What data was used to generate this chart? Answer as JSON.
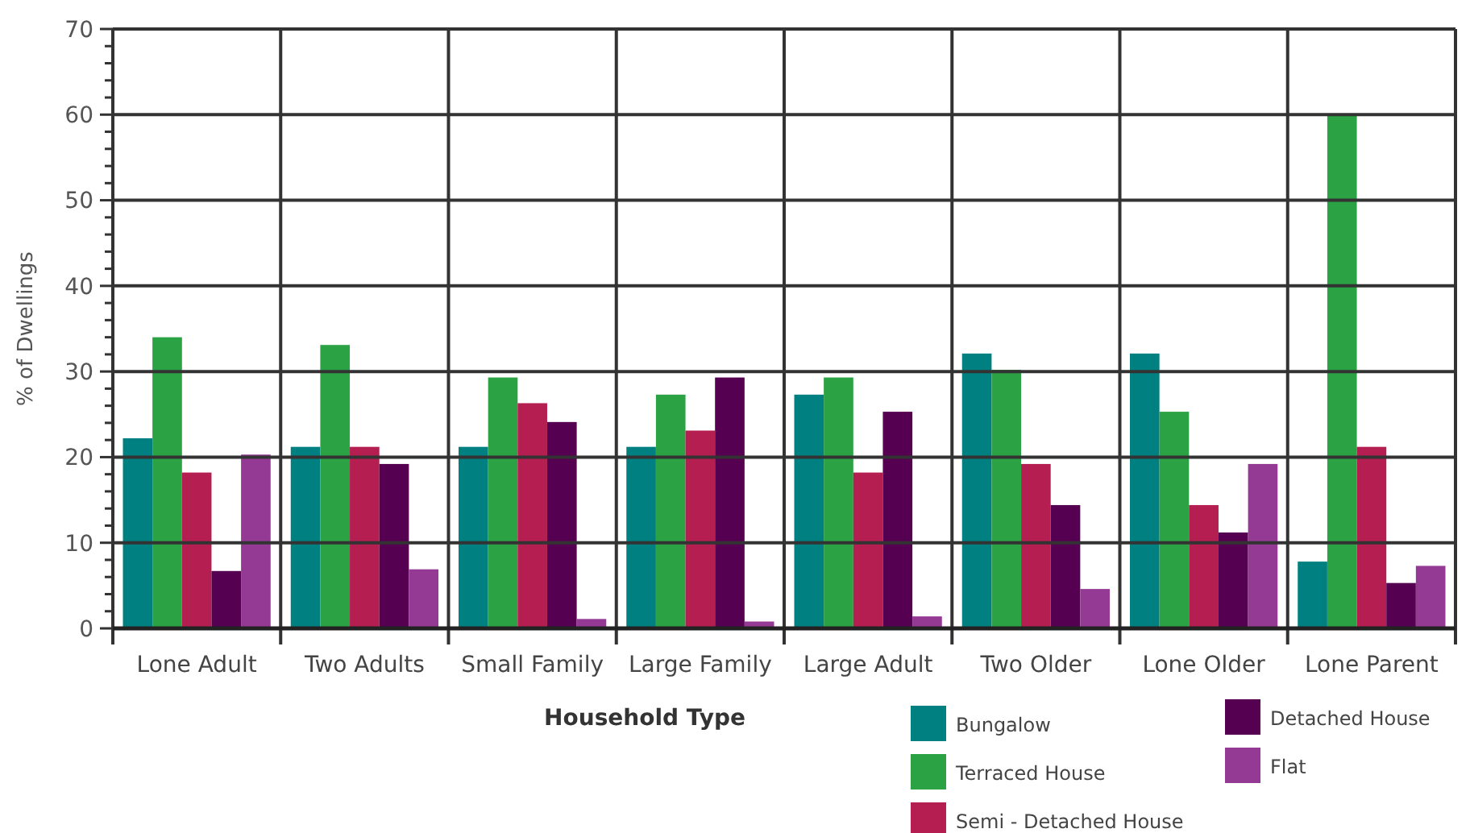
{
  "chart_data": {
    "type": "bar",
    "xlabel": "Household Type",
    "ylabel": "% of Dwellings",
    "categories": [
      "Lone Adult",
      "Two Adults",
      "Small Family",
      "Large Family",
      "Large Adult",
      "Two Older",
      "Lone Older",
      "Lone Parent"
    ],
    "series": [
      {
        "name": "Bungalow",
        "color": "#008080",
        "values": [
          22.2,
          21.2,
          21.2,
          21.2,
          27.3,
          32.1,
          32.1,
          7.8
        ]
      },
      {
        "name": "Terraced House",
        "color": "#2ba244",
        "values": [
          34,
          33.1,
          29.3,
          27.3,
          29.3,
          30.2,
          25.3,
          60
        ]
      },
      {
        "name": "Semi - Detached House",
        "color": "#b41e50",
        "values": [
          18.2,
          21.2,
          26.3,
          23.1,
          18.2,
          19.2,
          14.4,
          21.2
        ]
      },
      {
        "name": "Detached House",
        "color": "#550050",
        "values": [
          6.7,
          19.2,
          24.1,
          29.3,
          25.3,
          14.4,
          11.2,
          5.3
        ]
      },
      {
        "name": "Flat",
        "color": "#943a94",
        "values": [
          20.3,
          6.9,
          1.1,
          0.8,
          1.4,
          4.6,
          19.2,
          7.3
        ]
      }
    ],
    "ylim": [
      0,
      70
    ],
    "yticks": [
      0,
      {
        "value": 2,
        "label": null
      },
      {
        "value": 4,
        "label": null
      },
      {
        "value": 6,
        "label": null
      },
      {
        "value": 8,
        "label": null
      },
      10,
      {
        "value": 12,
        "label": null
      },
      {
        "value": 14,
        "label": null
      },
      {
        "value": 16,
        "label": null
      },
      {
        "value": 18,
        "label": null
      },
      20,
      {
        "value": 22,
        "label": null
      },
      {
        "value": 24,
        "label": null
      },
      {
        "value": 26,
        "label": null
      },
      {
        "value": 28,
        "label": null
      },
      30,
      {
        "value": 32,
        "label": null
      },
      {
        "value": 34,
        "label": null
      },
      {
        "value": 36,
        "label": null
      },
      {
        "value": 38,
        "label": null
      },
      40,
      {
        "value": 42,
        "label": null
      },
      {
        "value": 44,
        "label": null
      },
      {
        "value": 46,
        "label": null
      },
      {
        "value": 48,
        "label": null
      },
      50,
      {
        "value": 52,
        "label": null
      },
      {
        "value": 54,
        "label": null
      },
      {
        "value": 56,
        "label": null
      },
      {
        "value": 58,
        "label": null
      },
      60,
      {
        "value": 62,
        "label": null
      },
      {
        "value": 64,
        "label": null
      },
      {
        "value": 66,
        "label": null
      },
      {
        "value": 68,
        "label": null
      },
      70
    ],
    "grid": true,
    "legend": "bottom right"
  }
}
